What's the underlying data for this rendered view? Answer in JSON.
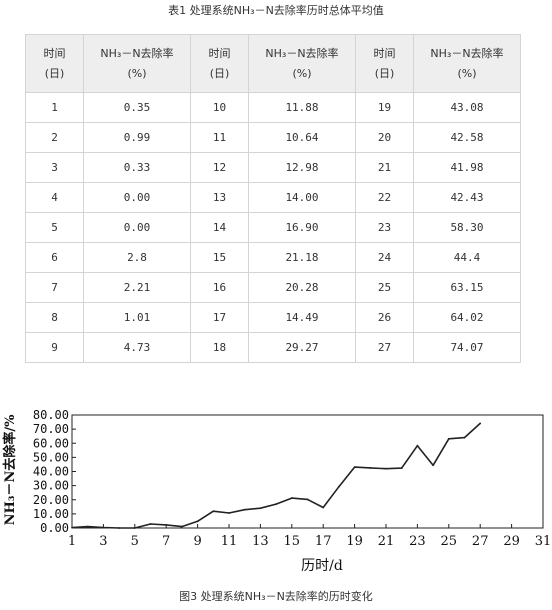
{
  "table": {
    "title": "表1  处理系统NH₃－N去除率历时总体平均值",
    "day_header": [
      "时间",
      "(日)"
    ],
    "rate_header": [
      "NH₃－N去除率",
      "(%)"
    ],
    "rows": [
      [
        {
          "day": "1",
          "rate": "0.35"
        },
        {
          "day": "10",
          "rate": "11.88"
        },
        {
          "day": "19",
          "rate": "43.08"
        }
      ],
      [
        {
          "day": "2",
          "rate": "0.99"
        },
        {
          "day": "11",
          "rate": "10.64"
        },
        {
          "day": "20",
          "rate": "42.58"
        }
      ],
      [
        {
          "day": "3",
          "rate": "0.33"
        },
        {
          "day": "12",
          "rate": "12.98"
        },
        {
          "day": "21",
          "rate": "41.98"
        }
      ],
      [
        {
          "day": "4",
          "rate": "0.00"
        },
        {
          "day": "13",
          "rate": "14.00"
        },
        {
          "day": "22",
          "rate": "42.43"
        }
      ],
      [
        {
          "day": "5",
          "rate": "0.00"
        },
        {
          "day": "14",
          "rate": "16.90"
        },
        {
          "day": "23",
          "rate": "58.30"
        }
      ],
      [
        {
          "day": "6",
          "rate": "2.8"
        },
        {
          "day": "15",
          "rate": "21.18"
        },
        {
          "day": "24",
          "rate": "44.4"
        }
      ],
      [
        {
          "day": "7",
          "rate": "2.21"
        },
        {
          "day": "16",
          "rate": "20.28"
        },
        {
          "day": "25",
          "rate": "63.15"
        }
      ],
      [
        {
          "day": "8",
          "rate": "1.01"
        },
        {
          "day": "17",
          "rate": "14.49"
        },
        {
          "day": "26",
          "rate": "64.02"
        }
      ],
      [
        {
          "day": "9",
          "rate": "4.73"
        },
        {
          "day": "18",
          "rate": "29.27"
        },
        {
          "day": "27",
          "rate": "74.07"
        }
      ]
    ]
  },
  "chart_data": {
    "type": "line",
    "x": [
      1,
      2,
      3,
      4,
      5,
      6,
      7,
      8,
      9,
      10,
      11,
      12,
      13,
      14,
      15,
      16,
      17,
      18,
      19,
      20,
      21,
      22,
      23,
      24,
      25,
      26,
      27
    ],
    "series": [
      {
        "values": [
          0.35,
          0.99,
          0.33,
          0.0,
          0.0,
          2.8,
          2.21,
          1.01,
          4.73,
          11.88,
          10.64,
          12.98,
          14.0,
          16.9,
          21.18,
          20.28,
          14.49,
          29.27,
          43.08,
          42.58,
          41.98,
          42.43,
          58.3,
          44.4,
          63.15,
          64.02,
          74.07
        ],
        "color": "#222222"
      }
    ],
    "xlabel": "历时/d",
    "ylabel": "NH₃－N去除率/%",
    "xlim": [
      1,
      31
    ],
    "ylim": [
      0,
      80
    ],
    "xticks": [
      "1",
      "3",
      "5",
      "7",
      "9",
      "11",
      "13",
      "15",
      "17",
      "19",
      "21",
      "23",
      "25",
      "27",
      "29",
      "31"
    ],
    "yticks": [
      "0.00",
      "10.00",
      "20.00",
      "30.00",
      "40.00",
      "50.00",
      "60.00",
      "70.00",
      "80.00"
    ],
    "grid": false,
    "caption": "图3  处理系统NH₃－N去除率的历时变化"
  }
}
